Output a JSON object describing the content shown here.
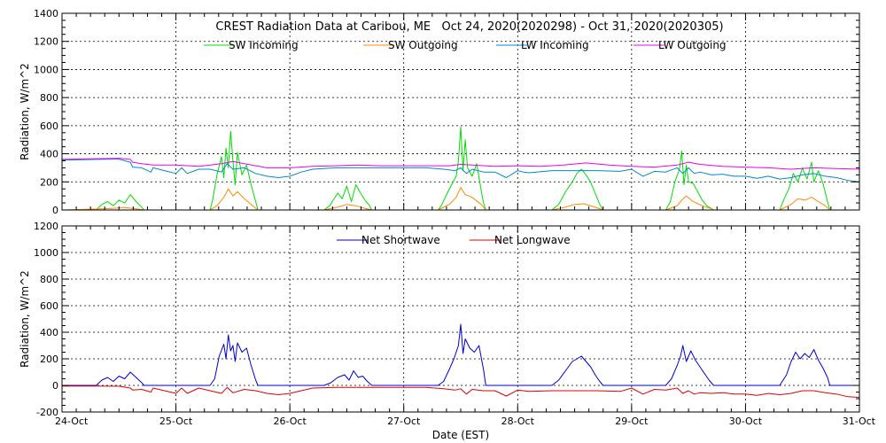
{
  "chart_data": [
    {
      "type": "line",
      "title": "CREST Radiation Data at Caribou, ME   Oct 24, 2020(2020298) - Oct 31, 2020(2020305)",
      "xlabel": "",
      "ylabel": "Radiation, W/m^2",
      "xlim": [
        24,
        31
      ],
      "ylim": [
        0,
        1400
      ],
      "yticks": [
        0,
        200,
        400,
        600,
        800,
        1000,
        1200,
        1400
      ],
      "grid": true,
      "legend": "top-center",
      "series": [
        {
          "name": "SW Incoming",
          "color": "#00dd00",
          "x": [
            24.0,
            24.3,
            24.35,
            24.4,
            24.45,
            24.5,
            24.55,
            24.6,
            24.65,
            24.7,
            24.72,
            25.3,
            25.32,
            25.36,
            25.4,
            25.42,
            25.44,
            25.46,
            25.48,
            25.5,
            25.52,
            25.54,
            25.58,
            25.62,
            25.66,
            25.7,
            25.72,
            26.3,
            26.35,
            26.42,
            26.46,
            26.5,
            26.54,
            26.58,
            26.62,
            26.66,
            26.7,
            26.72,
            27.3,
            27.33,
            27.37,
            27.42,
            27.46,
            27.48,
            27.5,
            27.52,
            27.54,
            27.56,
            27.6,
            27.64,
            27.68,
            27.7,
            27.72,
            28.3,
            28.36,
            28.42,
            28.48,
            28.52,
            28.56,
            28.6,
            28.64,
            28.68,
            28.72,
            28.75,
            29.3,
            29.34,
            29.38,
            29.42,
            29.44,
            29.46,
            29.48,
            29.5,
            29.54,
            29.58,
            29.62,
            29.66,
            29.7,
            29.72,
            30.3,
            30.34,
            30.38,
            30.42,
            30.46,
            30.5,
            30.54,
            30.58,
            30.6,
            30.64,
            30.68,
            30.72,
            30.74,
            31.0
          ],
          "y": [
            0,
            0,
            40,
            60,
            30,
            70,
            50,
            110,
            60,
            20,
            0,
            0,
            60,
            250,
            380,
            230,
            440,
            300,
            560,
            350,
            180,
            410,
            250,
            320,
            180,
            60,
            0,
            0,
            30,
            120,
            80,
            170,
            60,
            180,
            120,
            70,
            30,
            0,
            0,
            30,
            100,
            180,
            240,
            350,
            590,
            280,
            500,
            300,
            240,
            330,
            140,
            50,
            0,
            0,
            40,
            130,
            200,
            260,
            290,
            250,
            200,
            120,
            40,
            0,
            0,
            60,
            200,
            290,
            420,
            180,
            320,
            200,
            190,
            130,
            70,
            30,
            10,
            0,
            0,
            80,
            150,
            260,
            200,
            300,
            220,
            340,
            200,
            280,
            190,
            60,
            0,
            0
          ]
        },
        {
          "name": "SW Outgoing",
          "color": "#ff8800",
          "x": [
            24.0,
            24.35,
            24.45,
            24.55,
            24.65,
            24.72,
            25.3,
            25.36,
            25.42,
            25.46,
            25.5,
            25.54,
            25.6,
            25.66,
            25.72,
            26.3,
            26.42,
            26.5,
            26.58,
            26.66,
            26.72,
            27.3,
            27.4,
            27.46,
            27.5,
            27.54,
            27.6,
            27.68,
            27.72,
            28.3,
            28.42,
            28.5,
            28.58,
            28.66,
            28.75,
            29.3,
            29.4,
            29.44,
            29.48,
            29.54,
            29.62,
            29.7,
            29.72,
            30.3,
            30.4,
            30.46,
            30.52,
            30.58,
            30.64,
            30.7,
            30.74,
            31.0
          ],
          "y": [
            0,
            8,
            12,
            18,
            8,
            0,
            0,
            30,
            90,
            150,
            100,
            130,
            80,
            40,
            0,
            0,
            20,
            40,
            30,
            12,
            0,
            0,
            40,
            90,
            160,
            110,
            90,
            40,
            0,
            0,
            20,
            40,
            45,
            25,
            0,
            0,
            30,
            70,
            100,
            60,
            30,
            8,
            0,
            0,
            40,
            80,
            70,
            90,
            60,
            30,
            0,
            0
          ]
        },
        {
          "name": "LW Incoming",
          "color": "#0088cc",
          "x": [
            24.0,
            24.3,
            24.5,
            24.6,
            24.62,
            24.7,
            24.78,
            24.8,
            24.9,
            25.0,
            25.05,
            25.1,
            25.2,
            25.3,
            25.4,
            25.45,
            25.5,
            25.6,
            25.7,
            25.8,
            25.9,
            26.0,
            26.1,
            26.2,
            26.4,
            26.6,
            26.8,
            27.0,
            27.2,
            27.35,
            27.45,
            27.5,
            27.55,
            27.6,
            27.7,
            27.8,
            27.9,
            28.0,
            28.05,
            28.1,
            28.3,
            28.5,
            28.7,
            28.9,
            29.0,
            29.1,
            29.2,
            29.3,
            29.4,
            29.45,
            29.5,
            29.55,
            29.6,
            29.7,
            29.8,
            29.9,
            30.0,
            30.1,
            30.2,
            30.3,
            30.4,
            30.5,
            30.6,
            30.7,
            30.8,
            30.9,
            31.0
          ],
          "y": [
            355,
            360,
            362,
            340,
            305,
            300,
            270,
            300,
            280,
            260,
            300,
            260,
            290,
            290,
            270,
            330,
            290,
            300,
            260,
            240,
            230,
            240,
            270,
            290,
            300,
            300,
            300,
            300,
            300,
            290,
            280,
            300,
            260,
            290,
            270,
            270,
            230,
            280,
            270,
            265,
            280,
            280,
            280,
            275,
            290,
            240,
            275,
            270,
            300,
            260,
            300,
            260,
            270,
            250,
            255,
            240,
            240,
            225,
            240,
            220,
            230,
            250,
            260,
            240,
            230,
            210,
            200
          ]
        },
        {
          "name": "LW Outgoing",
          "color": "#ee00ee",
          "x": [
            24.0,
            24.3,
            24.5,
            24.6,
            24.62,
            24.7,
            24.8,
            25.0,
            25.2,
            25.4,
            25.5,
            25.6,
            25.8,
            26.0,
            26.2,
            26.4,
            26.6,
            26.8,
            27.0,
            27.2,
            27.4,
            27.5,
            27.6,
            27.8,
            28.0,
            28.2,
            28.4,
            28.6,
            28.8,
            29.0,
            29.2,
            29.4,
            29.5,
            29.6,
            29.8,
            30.0,
            30.2,
            30.4,
            30.6,
            30.8,
            31.0
          ],
          "y": [
            360,
            365,
            368,
            360,
            340,
            330,
            320,
            320,
            310,
            330,
            345,
            330,
            300,
            300,
            310,
            315,
            320,
            315,
            315,
            315,
            315,
            325,
            320,
            310,
            315,
            310,
            320,
            335,
            320,
            310,
            305,
            320,
            340,
            325,
            310,
            305,
            300,
            290,
            300,
            295,
            290
          ]
        }
      ]
    },
    {
      "type": "line",
      "title": "",
      "xlabel": "Date (EST)",
      "ylabel": "Radiation, W/m^2",
      "xlim": [
        24,
        31
      ],
      "ylim": [
        -200,
        1200
      ],
      "yticks": [
        -200,
        0,
        200,
        400,
        600,
        800,
        1000,
        1200
      ],
      "xticks": [
        24,
        25,
        26,
        27,
        28,
        29,
        30,
        31
      ],
      "xticklabels": [
        "24-Oct",
        "25-Oct",
        "26-Oct",
        "27-Oct",
        "28-Oct",
        "29-Oct",
        "30-Oct",
        "31-Oct"
      ],
      "grid": true,
      "legend": "top-center",
      "series": [
        {
          "name": "Net Shortwave",
          "color": "#0000cc",
          "x": [
            24.0,
            24.3,
            24.35,
            24.4,
            24.45,
            24.5,
            24.55,
            24.6,
            24.65,
            24.7,
            24.72,
            25.3,
            25.34,
            25.38,
            25.42,
            25.44,
            25.46,
            25.48,
            25.5,
            25.52,
            25.54,
            25.58,
            25.62,
            25.66,
            25.7,
            25.72,
            26.3,
            26.36,
            26.42,
            26.48,
            26.52,
            26.56,
            26.6,
            26.64,
            26.68,
            26.72,
            27.3,
            27.35,
            27.4,
            27.44,
            27.48,
            27.5,
            27.52,
            27.54,
            27.58,
            27.62,
            27.66,
            27.7,
            27.72,
            28.3,
            28.36,
            28.42,
            28.48,
            28.52,
            28.56,
            28.6,
            28.64,
            28.68,
            28.72,
            28.75,
            29.3,
            29.35,
            29.4,
            29.43,
            29.45,
            29.48,
            29.52,
            29.56,
            29.6,
            29.64,
            29.68,
            29.72,
            30.3,
            30.36,
            30.4,
            30.44,
            30.48,
            30.52,
            30.56,
            30.6,
            30.64,
            30.68,
            30.72,
            30.74,
            31.0
          ],
          "y": [
            0,
            0,
            40,
            60,
            30,
            70,
            50,
            100,
            60,
            20,
            0,
            0,
            50,
            220,
            310,
            200,
            380,
            260,
            300,
            180,
            320,
            250,
            280,
            150,
            40,
            0,
            0,
            20,
            60,
            80,
            40,
            110,
            60,
            70,
            30,
            0,
            0,
            30,
            120,
            200,
            300,
            460,
            240,
            350,
            280,
            250,
            300,
            120,
            0,
            0,
            40,
            110,
            180,
            200,
            220,
            180,
            140,
            80,
            30,
            0,
            0,
            50,
            150,
            220,
            300,
            180,
            260,
            190,
            140,
            90,
            40,
            0,
            0,
            80,
            180,
            250,
            200,
            240,
            210,
            270,
            190,
            130,
            60,
            0,
            0
          ]
        },
        {
          "name": "Net Longwave",
          "color": "#dd0000",
          "x": [
            24.0,
            24.3,
            24.5,
            24.6,
            24.62,
            24.7,
            24.78,
            24.8,
            24.9,
            25.0,
            25.05,
            25.1,
            25.2,
            25.3,
            25.4,
            25.45,
            25.5,
            25.6,
            25.7,
            25.8,
            25.9,
            26.0,
            26.2,
            26.4,
            26.6,
            26.8,
            27.0,
            27.2,
            27.35,
            27.45,
            27.5,
            27.55,
            27.6,
            27.7,
            27.8,
            27.9,
            28.0,
            28.1,
            28.3,
            28.5,
            28.7,
            28.9,
            29.0,
            29.1,
            29.2,
            29.3,
            29.4,
            29.45,
            29.5,
            29.55,
            29.6,
            29.7,
            29.8,
            29.9,
            30.0,
            30.1,
            30.2,
            30.3,
            30.4,
            30.5,
            30.6,
            30.7,
            30.8,
            30.9,
            31.0
          ],
          "y": [
            -5,
            -5,
            -6,
            -20,
            -35,
            -30,
            -50,
            -20,
            -40,
            -60,
            -20,
            -60,
            -20,
            -40,
            -60,
            -15,
            -55,
            -30,
            -40,
            -60,
            -70,
            -60,
            -20,
            -15,
            -15,
            -15,
            -15,
            -15,
            -25,
            -35,
            -25,
            -65,
            -30,
            -40,
            -40,
            -80,
            -35,
            -45,
            -40,
            -40,
            -40,
            -45,
            -20,
            -65,
            -30,
            -35,
            -20,
            -60,
            -40,
            -65,
            -55,
            -60,
            -55,
            -65,
            -65,
            -75,
            -60,
            -70,
            -60,
            -40,
            -40,
            -55,
            -65,
            -85,
            -90
          ]
        }
      ]
    }
  ]
}
